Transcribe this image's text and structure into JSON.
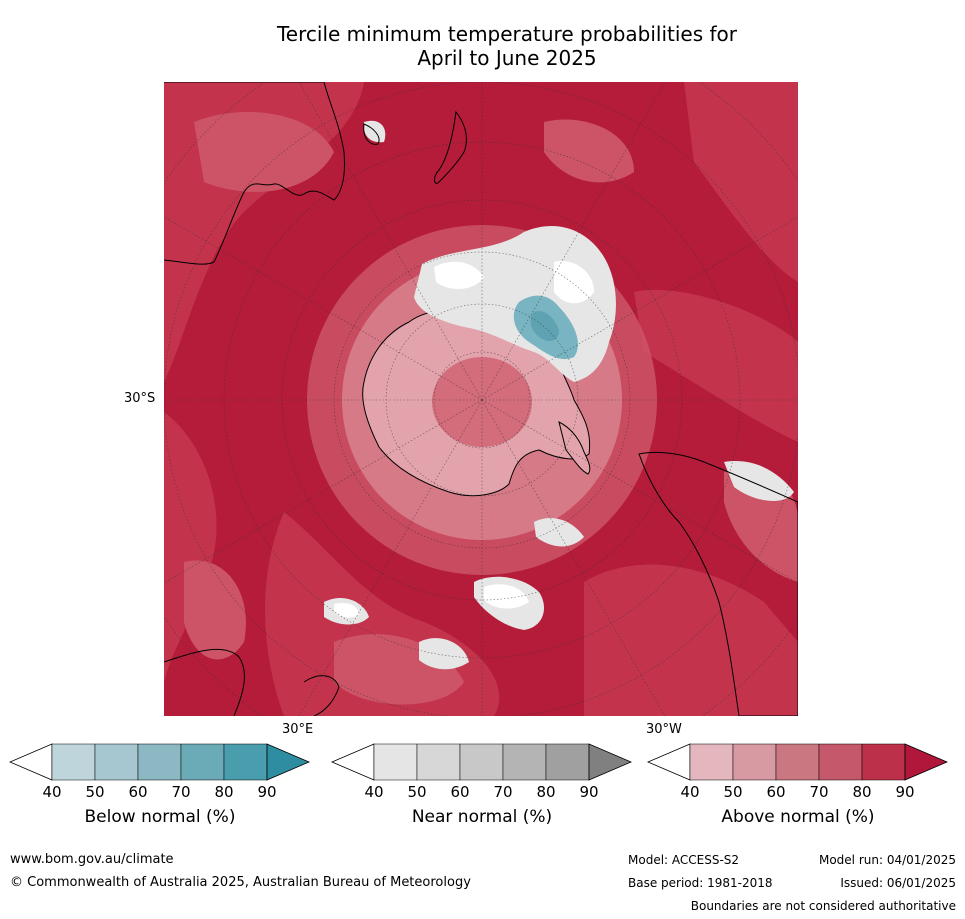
{
  "title_line1": "Tercile minimum temperature probabilities for",
  "title_line2": "April to June 2025",
  "map": {
    "lat_label": "30°S",
    "lon_labels": {
      "east": "30°E",
      "west": "30°W"
    },
    "colors": {
      "above_90": "#b41c3a",
      "above_80": "#c3344c",
      "above_70": "#cc5466",
      "above_60": "#d77a88",
      "above_50": "#e3a3ac",
      "near": "#e6e6e6",
      "below": "#79b4c2"
    }
  },
  "colorbars": [
    {
      "label": "Below normal (%)",
      "ticks": [
        "40",
        "50",
        "60",
        "70",
        "80",
        "90"
      ],
      "colors": [
        "#ffffff",
        "#bfd5dc",
        "#a6c7cf",
        "#8cb8c3",
        "#6aabb7",
        "#4a9dac",
        "#2e8da0"
      ]
    },
    {
      "label": "Near normal (%)",
      "ticks": [
        "40",
        "50",
        "60",
        "70",
        "80",
        "90"
      ],
      "colors": [
        "#ffffff",
        "#e5e5e5",
        "#d7d7d7",
        "#c8c8c8",
        "#b4b4b4",
        "#a0a0a0",
        "#808080"
      ]
    },
    {
      "label": "Above normal (%)",
      "ticks": [
        "40",
        "50",
        "60",
        "70",
        "80",
        "90"
      ],
      "colors": [
        "#ffffff",
        "#e3b7bd",
        "#d799a2",
        "#cb7782",
        "#c5586a",
        "#bd3049",
        "#b0173a"
      ]
    }
  ],
  "footer": {
    "website": "www.bom.gov.au/climate",
    "copyright": "© Commonwealth of Australia 2025, Australian Bureau of Meteorology",
    "model": "Model: ACCESS-S2",
    "base_period": "Base period: 1981-2018",
    "model_run": "Model run: 04/01/2025",
    "issued": "Issued: 06/01/2025",
    "disclaimer": "Boundaries are not considered authoritative"
  }
}
